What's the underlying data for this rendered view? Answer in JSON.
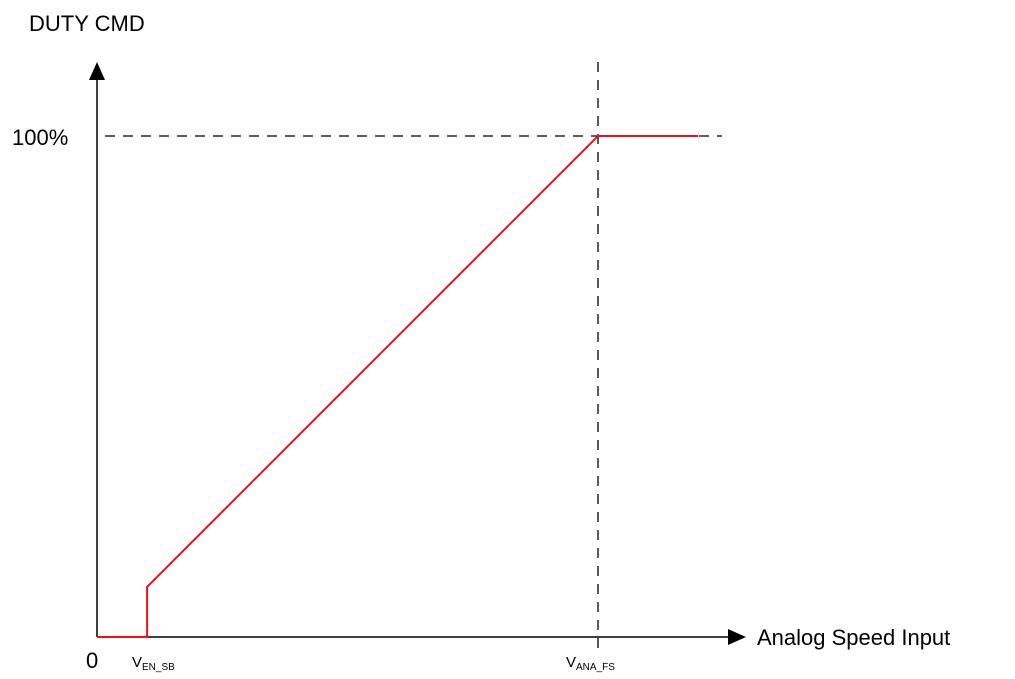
{
  "chart_data": {
    "type": "line",
    "ylabel": "DUTY CMD",
    "xlabel": "Analog Speed Input",
    "origin_label": "0",
    "y_tick": {
      "label": "100%",
      "value": 100
    },
    "x_markers": [
      {
        "base": "V",
        "sub": "EN_SB",
        "role": "enable"
      },
      {
        "base": "V",
        "sub": "ANA_FS",
        "role": "full-scale"
      }
    ],
    "curve": {
      "color": "#e8141a",
      "points": [
        {
          "x": 0.0,
          "y": 0
        },
        {
          "x": 0.1,
          "y": 0
        },
        {
          "x": 0.1,
          "y": 10
        },
        {
          "x": 1.0,
          "y": 100
        },
        {
          "x": 1.2,
          "y": 100
        }
      ]
    },
    "guide_lines": {
      "style": "dashed",
      "color": "#000000"
    },
    "axis_color": "#000000"
  }
}
